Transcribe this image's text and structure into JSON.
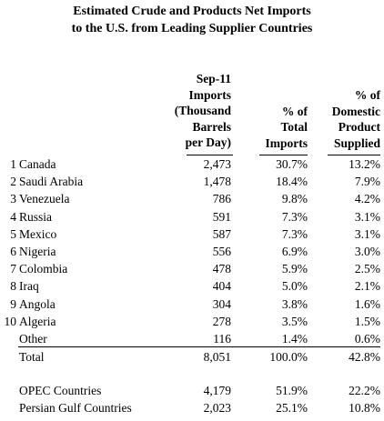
{
  "title": {
    "line1": "Estimated Crude and Products Net Imports",
    "line2": "to the U.S. from Leading Supplier Countries"
  },
  "headers": {
    "imports": [
      "Sep-11",
      "Imports",
      "(Thousand",
      "Barrels",
      "per Day)"
    ],
    "pct_total": [
      "% of",
      "Total",
      "Imports"
    ],
    "pct_domestic": [
      "% of",
      "Domestic",
      "Product",
      "Supplied"
    ]
  },
  "rows": [
    {
      "rank": "1",
      "name": "Canada",
      "imports": "2,473",
      "pct_total": "30.7%",
      "pct_domestic": "13.2%"
    },
    {
      "rank": "2",
      "name": "Saudi Arabia",
      "imports": "1,478",
      "pct_total": "18.4%",
      "pct_domestic": "7.9%"
    },
    {
      "rank": "3",
      "name": "Venezuela",
      "imports": "786",
      "pct_total": "9.8%",
      "pct_domestic": "4.2%"
    },
    {
      "rank": "4",
      "name": "Russia",
      "imports": "591",
      "pct_total": "7.3%",
      "pct_domestic": "3.1%"
    },
    {
      "rank": "5",
      "name": "Mexico",
      "imports": "587",
      "pct_total": "7.3%",
      "pct_domestic": "3.1%"
    },
    {
      "rank": "6",
      "name": "Nigeria",
      "imports": "556",
      "pct_total": "6.9%",
      "pct_domestic": "3.0%"
    },
    {
      "rank": "7",
      "name": "Colombia",
      "imports": "478",
      "pct_total": "5.9%",
      "pct_domestic": "2.5%"
    },
    {
      "rank": "8",
      "name": "Iraq",
      "imports": "404",
      "pct_total": "5.0%",
      "pct_domestic": "2.1%"
    },
    {
      "rank": "9",
      "name": "Angola",
      "imports": "304",
      "pct_total": "3.8%",
      "pct_domestic": "1.6%"
    },
    {
      "rank": "10",
      "name": "Algeria",
      "imports": "278",
      "pct_total": "3.5%",
      "pct_domestic": "1.5%"
    },
    {
      "rank": "",
      "name": "Other",
      "imports": "116",
      "pct_total": "1.4%",
      "pct_domestic": "0.6%"
    },
    {
      "rank": "",
      "name": "Total",
      "imports": "8,051",
      "pct_total": "100.0%",
      "pct_domestic": "42.8%"
    },
    {
      "rank": "",
      "name": "OPEC Countries",
      "imports": "4,179",
      "pct_total": "51.9%",
      "pct_domestic": "22.2%"
    },
    {
      "rank": "",
      "name": "Persian Gulf Countries",
      "imports": "2,023",
      "pct_total": "25.1%",
      "pct_domestic": "10.8%"
    }
  ]
}
